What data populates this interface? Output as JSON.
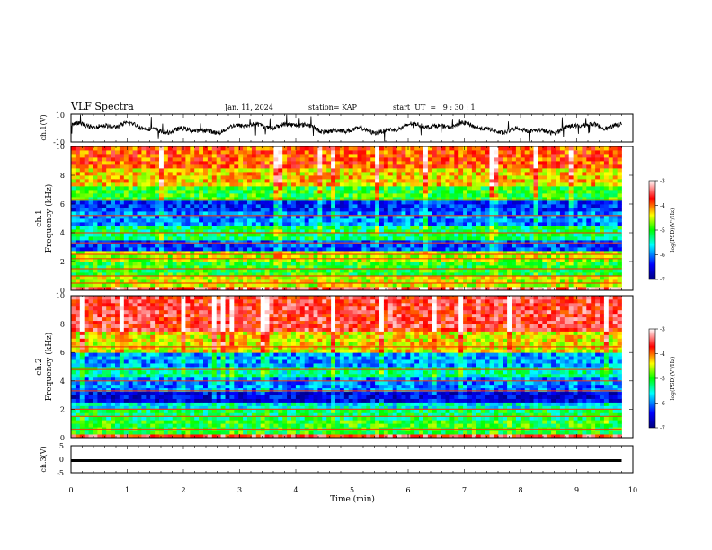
{
  "header": {
    "title": "VLF Spectra",
    "date": "Jan. 11, 2024",
    "station": "station= KAP",
    "start": "start  UT  =   9 : 30 : 1"
  },
  "chart_data": [
    {
      "type": "line",
      "name": "ch1-waveform",
      "ylabel": "ch.1(V)",
      "ylim": [
        -10,
        10
      ],
      "y_ticks": [
        "10",
        "-10"
      ],
      "xlim": [
        0,
        10
      ],
      "x_end": 9.8,
      "trace_color": "#000000"
    },
    {
      "type": "heatmap",
      "name": "ch1-spectrogram",
      "ylabel": "ch.1\nFrequency (kHz)",
      "ylabel_lines": [
        "ch.1",
        "Frequency  (kHz)"
      ],
      "ylim": [
        0,
        10
      ],
      "y_ticks": [
        "0",
        "2",
        "4",
        "6",
        "8",
        "10"
      ],
      "x_end": 9.8,
      "colorbar": {
        "label": "log(PSD)(V²/Hz)",
        "range": [
          -7,
          -3
        ],
        "ticks": [
          "-3",
          "-4",
          "-5",
          "-6",
          "-7"
        ]
      },
      "bands": [
        {
          "from": 0.0,
          "to": 0.3,
          "level": -3.4
        },
        {
          "from": 0.3,
          "to": 1.0,
          "level": -4.5
        },
        {
          "from": 1.0,
          "to": 2.0,
          "level": -5.0
        },
        {
          "from": 2.0,
          "to": 2.7,
          "level": -4.6
        },
        {
          "from": 2.7,
          "to": 3.4,
          "level": -6.2
        },
        {
          "from": 3.4,
          "to": 4.4,
          "level": -5.2
        },
        {
          "from": 4.4,
          "to": 5.4,
          "level": -6.0
        },
        {
          "from": 5.4,
          "to": 6.3,
          "level": -6.3
        },
        {
          "from": 6.3,
          "to": 7.3,
          "level": -5.0
        },
        {
          "from": 7.3,
          "to": 8.5,
          "level": -4.3
        },
        {
          "from": 8.5,
          "to": 10.0,
          "level": -3.9
        }
      ],
      "lines_khz": [
        0.5,
        1.0,
        1.5,
        2.2,
        2.5,
        3.3,
        4.0,
        5.2,
        6.3
      ]
    },
    {
      "type": "heatmap",
      "name": "ch2-spectrogram",
      "ylabel": "ch.2\nFrequency (kHz)",
      "ylabel_lines": [
        "ch.2",
        "Frequency  (kHz)"
      ],
      "ylim": [
        0,
        10
      ],
      "y_ticks": [
        "0",
        "2",
        "4",
        "6",
        "8",
        "10"
      ],
      "x_end": 9.8,
      "colorbar": {
        "label": "log(PSD)(V²/Hz)",
        "range": [
          -7,
          -3
        ],
        "ticks": [
          "-3",
          "-4",
          "-5",
          "-6",
          "-7"
        ]
      },
      "bands": [
        {
          "from": 0.0,
          "to": 0.3,
          "level": -3.6
        },
        {
          "from": 0.3,
          "to": 1.2,
          "level": -5.0
        },
        {
          "from": 1.2,
          "to": 2.0,
          "level": -5.2
        },
        {
          "from": 2.0,
          "to": 2.5,
          "level": -5.6
        },
        {
          "from": 2.5,
          "to": 3.2,
          "level": -6.5
        },
        {
          "from": 3.2,
          "to": 4.2,
          "level": -6.0
        },
        {
          "from": 4.2,
          "to": 5.0,
          "level": -5.4
        },
        {
          "from": 5.0,
          "to": 6.1,
          "level": -5.9
        },
        {
          "from": 6.1,
          "to": 7.5,
          "level": -4.4
        },
        {
          "from": 7.5,
          "to": 10.0,
          "level": -3.6
        }
      ],
      "lines_khz": [
        0.6,
        1.5,
        2.0,
        3.3,
        4.0,
        4.8,
        6.4
      ]
    },
    {
      "type": "line",
      "name": "ch3-waveform",
      "ylabel": "ch.3(V)",
      "ylim": [
        -5,
        5
      ],
      "y_ticks": [
        "5",
        "0",
        "-5"
      ],
      "x_end": 9.8,
      "level_band": [
        -1.0,
        0.0
      ]
    }
  ],
  "xaxis": {
    "label": "Time  (min)",
    "ticks": [
      "0",
      "1",
      "2",
      "3",
      "4",
      "5",
      "6",
      "7",
      "8",
      "9",
      "10"
    ],
    "range": [
      0,
      10
    ]
  }
}
